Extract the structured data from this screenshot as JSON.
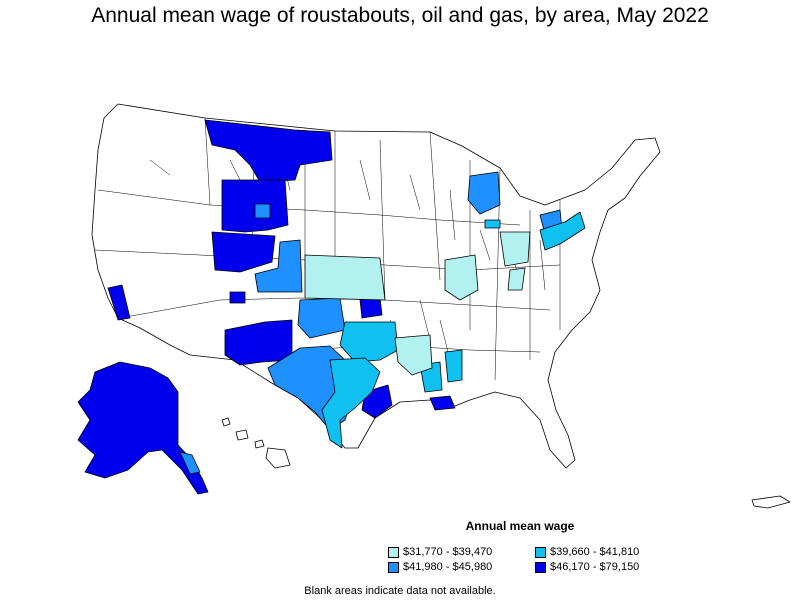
{
  "title": "Annual mean wage of roustabouts, oil and gas, by area, May 2022",
  "legend": {
    "title": "Annual mean wage",
    "items": [
      {
        "label": "$31,770 - $39,470",
        "color": "#b3f0f0"
      },
      {
        "label": "$39,660 - $41,810",
        "color": "#10c0f0"
      },
      {
        "label": "$41,980 - $45,980",
        "color": "#1e90ff"
      },
      {
        "label": "$46,170 - $79,150",
        "color": "#0000ee"
      }
    ]
  },
  "note": "Blank areas indicate data not available.",
  "colors": {
    "no_data": "#ffffff",
    "border": "#000000"
  }
}
